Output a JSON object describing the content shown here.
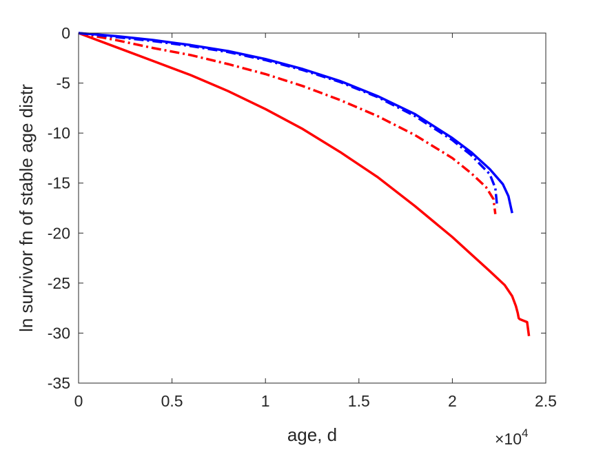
{
  "chart_data": {
    "type": "line",
    "title": "",
    "xlabel": "age, d",
    "ylabel": "ln survivor fn of stable age distr",
    "x_exponent_label": "×10",
    "x_exponent_power": "4",
    "x_exponent": 4,
    "xlim": [
      0,
      25000
    ],
    "ylim": [
      -35,
      0
    ],
    "xticks": [
      0,
      5000,
      10000,
      15000,
      20000,
      25000
    ],
    "xtick_labels": [
      "0",
      "0.5",
      "1",
      "1.5",
      "2",
      "2.5"
    ],
    "yticks": [
      0,
      -5,
      -10,
      -15,
      -20,
      -25,
      -30,
      -35
    ],
    "ytick_labels": [
      "0",
      "-5",
      "-10",
      "-15",
      "-20",
      "-25",
      "-30",
      "-35"
    ],
    "grid": false,
    "legend": "none",
    "series": [
      {
        "color": "#ff0000",
        "linestyle": "solid",
        "x": [
          0,
          2000,
          4000,
          6000,
          8000,
          10000,
          12000,
          14000,
          16000,
          18000,
          20000,
          21000,
          22000,
          22800,
          23200,
          23400,
          23500,
          23550,
          23600,
          24000,
          24100
        ],
        "y": [
          0,
          -1.4,
          -2.8,
          -4.2,
          -5.8,
          -7.6,
          -9.6,
          -11.9,
          -14.4,
          -17.3,
          -20.4,
          -22.1,
          -23.8,
          -25.2,
          -26.3,
          -27.3,
          -28.0,
          -28.5,
          -28.6,
          -28.9,
          -30.3
        ]
      },
      {
        "color": "#ff0000",
        "linestyle": "dashdot",
        "x": [
          0,
          2000,
          4000,
          6000,
          8000,
          10000,
          12000,
          14000,
          16000,
          18000,
          20000,
          21000,
          21800,
          22200,
          22300
        ],
        "y": [
          0,
          -0.7,
          -1.5,
          -2.2,
          -3.1,
          -4.1,
          -5.3,
          -6.7,
          -8.3,
          -10.2,
          -12.5,
          -14.0,
          -15.4,
          -16.6,
          -18.1
        ]
      },
      {
        "color": "#0000ff",
        "linestyle": "dashdot",
        "x": [
          0,
          2000,
          4000,
          6000,
          8000,
          10000,
          12000,
          14000,
          16000,
          18000,
          20000,
          21000,
          22000,
          22300,
          22400
        ],
        "y": [
          0,
          -0.4,
          -0.8,
          -1.3,
          -1.9,
          -2.7,
          -3.7,
          -4.9,
          -6.4,
          -8.3,
          -10.7,
          -12.2,
          -14.1,
          -15.5,
          -17.4
        ]
      },
      {
        "color": "#0000ff",
        "linestyle": "solid",
        "x": [
          0,
          2000,
          4000,
          6000,
          8000,
          10000,
          12000,
          14000,
          16000,
          18000,
          20000,
          21000,
          22000,
          22700,
          23000,
          23200
        ],
        "y": [
          0,
          -0.3,
          -0.7,
          -1.2,
          -1.8,
          -2.6,
          -3.6,
          -4.8,
          -6.3,
          -8.1,
          -10.5,
          -11.9,
          -13.6,
          -15.1,
          -16.3,
          -18.0
        ]
      }
    ]
  }
}
